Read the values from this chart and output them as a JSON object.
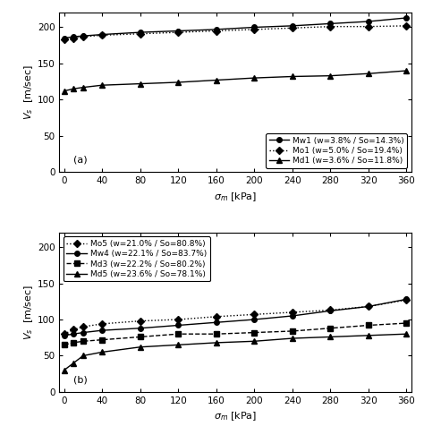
{
  "subplot_a": {
    "series": [
      {
        "label": "Mw1 (w=3.8% / So=14.3%)",
        "x": [
          0,
          10,
          20,
          40,
          80,
          120,
          160,
          200,
          240,
          280,
          320,
          360
        ],
        "y": [
          185,
          187,
          188,
          190,
          193,
          195,
          197,
          200,
          202,
          205,
          208,
          213
        ],
        "linestyle": "-",
        "marker": "o",
        "markersize": 4,
        "color": "black",
        "markerfacecolor": "black",
        "linewidth": 1.0
      },
      {
        "label": "Mo1 (w=5.0% / So=19.4%)",
        "x": [
          0,
          10,
          20,
          40,
          80,
          120,
          160,
          200,
          240,
          280,
          320,
          360
        ],
        "y": [
          183,
          185,
          187,
          189,
          191,
          193,
          195,
          197,
          199,
          201,
          201,
          202
        ],
        "linestyle": ":",
        "marker": "D",
        "markersize": 4,
        "color": "black",
        "markerfacecolor": "black",
        "linewidth": 1.0
      },
      {
        "label": "Md1 (w=3.6% / So=11.8%)",
        "x": [
          0,
          10,
          20,
          40,
          80,
          120,
          160,
          200,
          240,
          280,
          320,
          360
        ],
        "y": [
          112,
          115,
          117,
          120,
          122,
          124,
          127,
          130,
          132,
          133,
          136,
          140
        ],
        "linestyle": "-",
        "marker": "^",
        "markersize": 5,
        "color": "black",
        "markerfacecolor": "black",
        "linewidth": 1.0
      }
    ],
    "ylim": [
      0,
      220
    ],
    "xlim": [
      -5,
      365
    ],
    "yticks": [
      0,
      50,
      100,
      150,
      200
    ],
    "xticks": [
      0,
      40,
      80,
      120,
      160,
      200,
      240,
      280,
      320,
      360
    ],
    "label": "(a)",
    "legend_loc": "lower right"
  },
  "subplot_b": {
    "series": [
      {
        "label": "Mo5 (w=21.0% / So=80.8%)",
        "x": [
          0,
          10,
          20,
          40,
          80,
          120,
          160,
          200,
          240,
          280,
          320,
          360
        ],
        "y": [
          80,
          86,
          90,
          94,
          98,
          100,
          104,
          107,
          110,
          113,
          118,
          127
        ],
        "linestyle": ":",
        "marker": "D",
        "markersize": 4,
        "color": "black",
        "markerfacecolor": "black",
        "linewidth": 1.0
      },
      {
        "label": "Mw4 (w=22.1% / So=83.7%)",
        "x": [
          0,
          10,
          20,
          40,
          80,
          120,
          160,
          200,
          240,
          280,
          320,
          360
        ],
        "y": [
          78,
          80,
          82,
          85,
          88,
          92,
          96,
          100,
          105,
          112,
          118,
          128
        ],
        "linestyle": "-",
        "marker": "o",
        "markersize": 4,
        "color": "black",
        "markerfacecolor": "black",
        "linewidth": 1.0
      },
      {
        "label": "Md3 (w=22.2% / So=80.2%)",
        "x": [
          0,
          10,
          20,
          40,
          80,
          120,
          160,
          200,
          240,
          280,
          320,
          360
        ],
        "y": [
          65,
          68,
          70,
          72,
          76,
          80,
          80,
          82,
          84,
          88,
          92,
          95
        ],
        "linestyle": "--",
        "marker": "s",
        "markersize": 4,
        "color": "black",
        "markerfacecolor": "black",
        "linewidth": 1.0
      },
      {
        "label": "Md5 (w=23.6% / So=78.1%)",
        "x": [
          0,
          10,
          20,
          40,
          80,
          120,
          160,
          200,
          240,
          280,
          320,
          360
        ],
        "y": [
          30,
          40,
          50,
          55,
          62,
          65,
          68,
          70,
          74,
          76,
          78,
          80
        ],
        "linestyle": "-",
        "marker": "^",
        "markersize": 5,
        "color": "black",
        "markerfacecolor": "black",
        "linewidth": 1.0
      }
    ],
    "ylim": [
      0,
      220
    ],
    "xlim": [
      -5,
      365
    ],
    "yticks": [
      0,
      50,
      100,
      150,
      200
    ],
    "xticks": [
      0,
      40,
      80,
      120,
      160,
      200,
      240,
      280,
      320,
      360
    ],
    "label": "(b)",
    "legend_loc": "upper left"
  },
  "xlabel": "$\\sigma_m$ [kPa]",
  "ylabel": "$V_s$  [m/sec]",
  "figsize": [
    4.74,
    4.76
  ],
  "dpi": 100
}
